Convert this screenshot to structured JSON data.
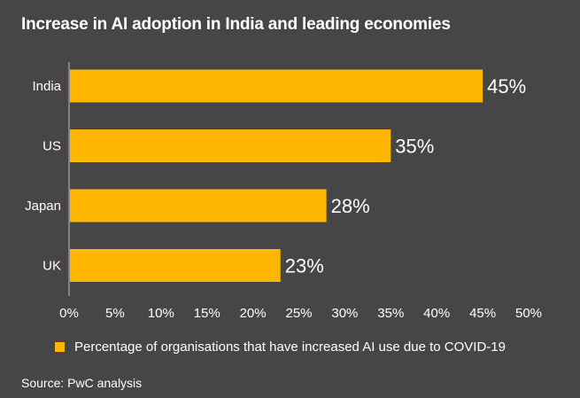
{
  "title": "Increase in AI adoption in India and leading economies",
  "source": "Source: PwC analysis",
  "colors": {
    "background": "#464646",
    "bar": "#FFB600",
    "text": "#ffffff"
  },
  "chart_data": {
    "type": "bar",
    "orientation": "horizontal",
    "title": "Increase in AI adoption in India and leading economies",
    "categories": [
      "India",
      "US",
      "Japan",
      "UK"
    ],
    "series": [
      {
        "name": "Percentage of organisations that have increased AI use due to COVID-19",
        "values": [
          45,
          35,
          28,
          23
        ],
        "labels": [
          "45%",
          "35%",
          "28%",
          "23%"
        ],
        "color": "#FFB600"
      }
    ],
    "xlim": [
      0,
      50
    ],
    "xticks": [
      0,
      5,
      10,
      15,
      20,
      25,
      30,
      35,
      40,
      45,
      50
    ],
    "xtick_labels": [
      "0%",
      "5%",
      "10%",
      "15%",
      "20%",
      "25%",
      "30%",
      "35%",
      "40%",
      "45%",
      "50%"
    ],
    "grid": false,
    "legend": "bottom"
  }
}
